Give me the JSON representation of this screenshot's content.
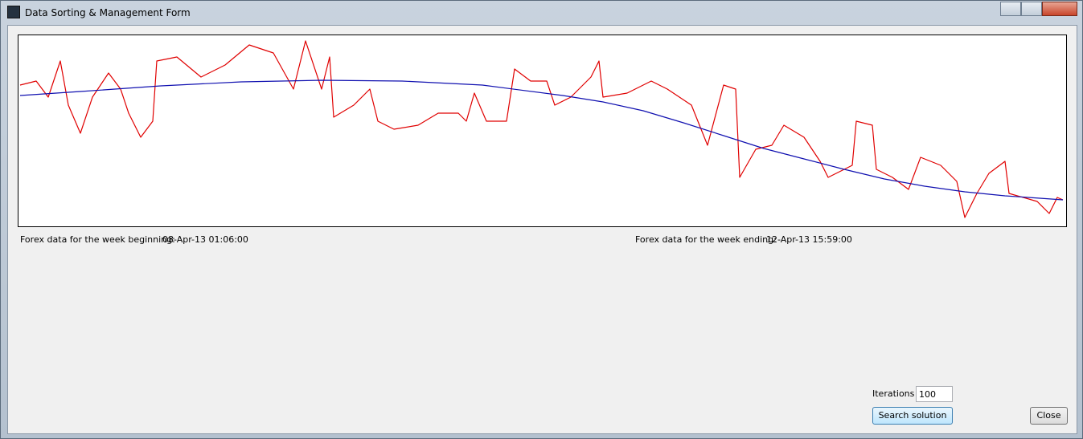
{
  "window": {
    "title": "Data Sorting & Management Form"
  },
  "chart_data": {
    "type": "line",
    "xlim": [
      0,
      1297
    ],
    "ylim": [
      0,
      240
    ],
    "series": [
      {
        "color": "#e00000",
        "x": [
          0,
          20,
          35,
          50,
          60,
          75,
          90,
          110,
          125,
          135,
          150,
          165,
          170,
          195,
          225,
          255,
          285,
          315,
          340,
          355,
          375,
          385,
          390,
          415,
          435,
          445,
          465,
          495,
          520,
          545,
          555,
          565,
          580,
          605,
          615,
          635,
          655,
          665,
          685,
          710,
          720,
          725,
          755,
          785,
          805,
          835,
          855,
          875,
          890,
          895,
          915,
          935,
          950,
          975,
          995,
          1005,
          1035,
          1040,
          1060,
          1065,
          1085,
          1105,
          1120,
          1145,
          1165,
          1175,
          1190,
          1205,
          1225,
          1230,
          1265,
          1280,
          1290,
          1297
        ],
        "values": [
          177,
          182,
          162,
          207,
          152,
          117,
          162,
          192,
          172,
          142,
          112,
          132,
          207,
          212,
          187,
          202,
          227,
          217,
          172,
          232,
          172,
          212,
          137,
          152,
          172,
          132,
          122,
          127,
          142,
          142,
          132,
          167,
          132,
          132,
          197,
          182,
          182,
          152,
          162,
          187,
          207,
          162,
          167,
          182,
          172,
          152,
          102,
          177,
          172,
          62,
          97,
          102,
          127,
          112,
          82,
          62,
          77,
          132,
          127,
          72,
          62,
          47,
          87,
          77,
          57,
          12,
          42,
          67,
          82,
          42,
          32,
          17,
          37,
          34
        ]
      },
      {
        "color": "#1010b0",
        "x": [
          0,
          75,
          175,
          275,
          375,
          475,
          575,
          675,
          725,
          775,
          825,
          875,
          925,
          975,
          1025,
          1075,
          1125,
          1175,
          1225,
          1297
        ],
        "values": [
          164,
          169,
          176,
          181,
          183,
          182,
          177,
          164,
          156,
          145,
          130,
          114,
          98,
          85,
          72,
          60,
          51,
          44,
          39,
          34
        ]
      }
    ]
  },
  "info": {
    "start_label": "Forex data for the week beginning:",
    "start_value": "08-Apr-13 01:06:00",
    "end_label": "Forex data for the week ending:",
    "end_value": "12-Apr-13 15:59:00"
  },
  "controls": {
    "iterations_label": "Iterations",
    "iterations_value": "100",
    "search_button": "Search solution",
    "close_button": "Close"
  }
}
